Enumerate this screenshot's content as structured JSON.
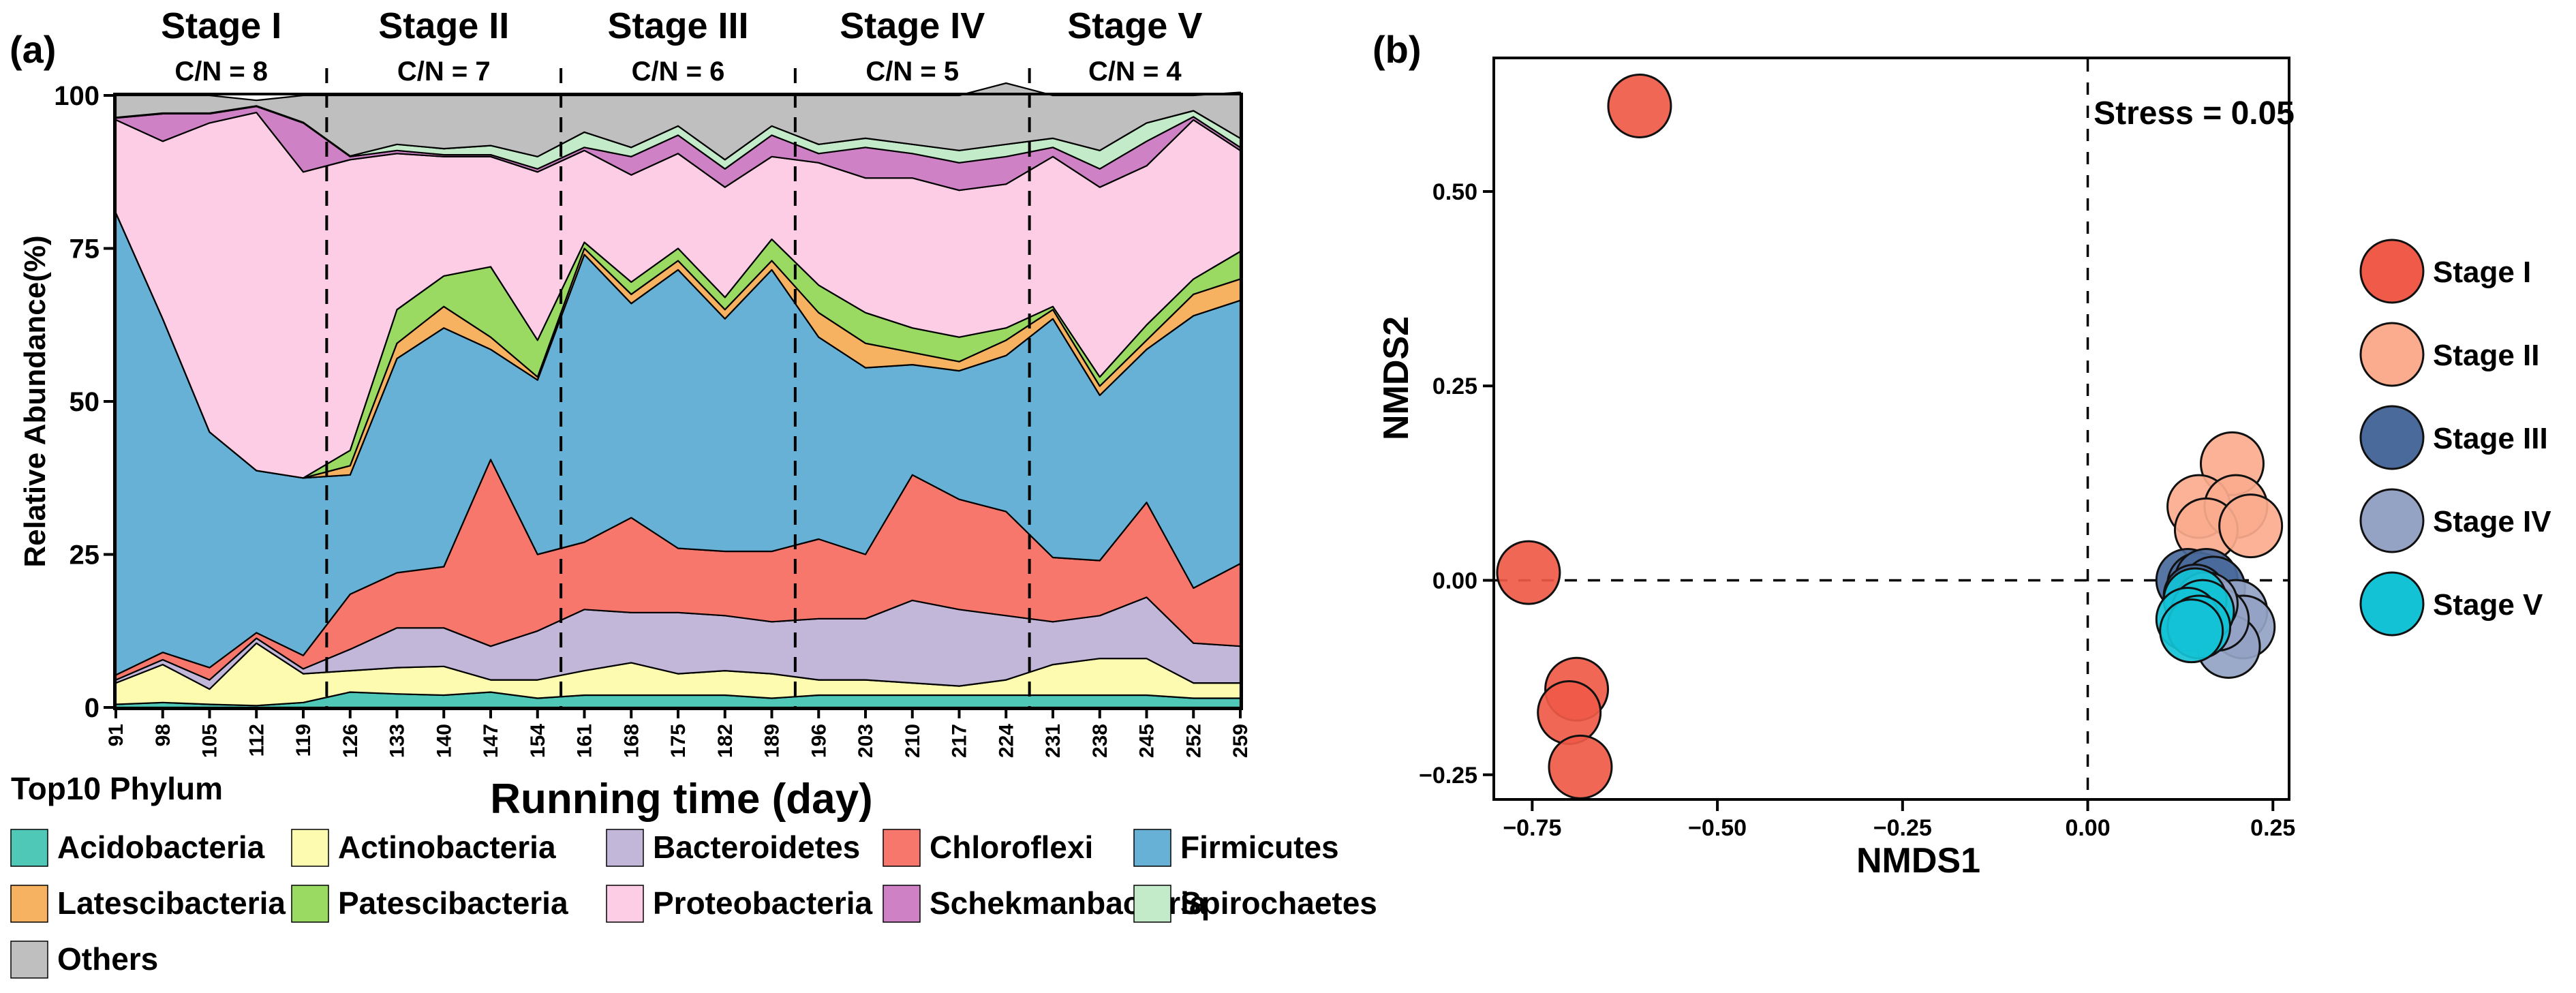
{
  "chart_data": [
    {
      "type": "area",
      "panel_label": "(a)",
      "stacked": true,
      "xlabel": "Running time (day)",
      "ylabel": "Relative Abundance(%)",
      "ylim": [
        0,
        100
      ],
      "yticks": [
        "0",
        "25",
        "50",
        "75",
        "100"
      ],
      "x": [
        "91",
        "98",
        "105",
        "112",
        "119",
        "126",
        "133",
        "140",
        "147",
        "154",
        "161",
        "168",
        "175",
        "182",
        "189",
        "196",
        "203",
        "210",
        "217",
        "224",
        "231",
        "238",
        "245",
        "252",
        "259"
      ],
      "stages": [
        {
          "name": "Stage I",
          "cn": "C/N = 8"
        },
        {
          "name": "Stage II",
          "cn": "C/N = 7"
        },
        {
          "name": "Stage III",
          "cn": "C/N = 6"
        },
        {
          "name": "Stage IV",
          "cn": "C/N = 5"
        },
        {
          "name": "Stage V",
          "cn": "C/N = 4"
        }
      ],
      "stage_dividers": [
        122.5,
        157.5,
        192.5,
        227.5
      ],
      "legend_title": "Top10 Phylum",
      "series": [
        {
          "name": "Acidobacteria",
          "color": "#4fc8b8",
          "values": [
            0.5,
            0.8,
            0.5,
            0.3,
            0.8,
            2.5,
            2.2,
            2.0,
            2.5,
            1.5,
            2.0,
            2.0,
            2.0,
            2.0,
            1.5,
            2.0,
            2.0,
            2.0,
            2.0,
            2.0,
            2.0,
            2.0,
            2.0,
            1.5,
            1.5
          ]
        },
        {
          "name": "Actinobacteria",
          "color": "#fdfbb0",
          "values": [
            3.5,
            6.2,
            2.5,
            10.2,
            4.7,
            3.5,
            4.3,
            4.7,
            2.0,
            3.0,
            4.0,
            5.3,
            3.5,
            4.0,
            4.0,
            2.5,
            2.5,
            2.0,
            1.5,
            2.5,
            5.0,
            6.0,
            6.0,
            2.5,
            2.5
          ]
        },
        {
          "name": "Bacteroidetes",
          "color": "#c2b7d8",
          "values": [
            0.5,
            0.8,
            1.5,
            0.8,
            0.8,
            3.5,
            6.5,
            6.3,
            5.5,
            8.0,
            10.0,
            8.2,
            10.0,
            9.0,
            8.5,
            10.0,
            10.0,
            13.5,
            12.5,
            10.5,
            7.0,
            7.0,
            10.0,
            6.5,
            6.0
          ]
        },
        {
          "name": "Chloroflexi",
          "color": "#f7776c",
          "values": [
            0.8,
            1.2,
            2.0,
            0.9,
            2.2,
            9.0,
            9.0,
            10.0,
            30.5,
            12.5,
            11.0,
            15.5,
            10.5,
            10.5,
            11.5,
            13.0,
            10.5,
            20.5,
            18.0,
            17.0,
            10.5,
            9.0,
            15.5,
            9.0,
            13.5
          ]
        },
        {
          "name": "Firmicutes",
          "color": "#66b1d5",
          "values": [
            75.5,
            54.5,
            38.5,
            26.5,
            29.0,
            19.5,
            35.0,
            39.0,
            18.0,
            28.5,
            47.0,
            35.0,
            45.5,
            38.0,
            46.0,
            33.0,
            30.5,
            18.0,
            21.0,
            25.5,
            39.0,
            27.0,
            25.0,
            44.5,
            43.0
          ]
        },
        {
          "name": "Latescibacteria",
          "color": "#f6b261",
          "values": [
            0,
            0,
            0,
            0,
            0,
            1.5,
            2.5,
            3.5,
            2.0,
            0.5,
            1.0,
            1.5,
            1.5,
            1.5,
            1.5,
            4.0,
            4.0,
            2.0,
            1.5,
            2.5,
            1.5,
            1.5,
            1.5,
            3.5,
            3.5
          ]
        },
        {
          "name": "Patescibacteria",
          "color": "#9ada63",
          "values": [
            0,
            0,
            0,
            0,
            0,
            2.5,
            5.5,
            5.0,
            11.5,
            6.0,
            1.0,
            2.0,
            2.0,
            2.0,
            3.5,
            4.5,
            5.0,
            4.0,
            4.0,
            2.0,
            0.5,
            1.5,
            2.5,
            2.5,
            4.5
          ]
        },
        {
          "name": "Proteobacteria",
          "color": "#fdcce5",
          "values": [
            15.2,
            29.0,
            50.5,
            58.5,
            50.0,
            47.5,
            25.5,
            19.5,
            18.0,
            27.5,
            15.0,
            17.5,
            15.5,
            18.0,
            13.5,
            20.0,
            22.0,
            24.5,
            24.0,
            23.5,
            24.5,
            31.0,
            26.0,
            26.0,
            16.5
          ]
        },
        {
          "name": "Schekmanbacteria",
          "color": "#cf81c5",
          "values": [
            0.3,
            4.5,
            1.5,
            1.0,
            8.0,
            0.5,
            0.5,
            0.3,
            0.3,
            0.5,
            0.5,
            3.0,
            3.0,
            3.0,
            3.5,
            1.5,
            5.0,
            4.0,
            4.5,
            4.5,
            1.5,
            3.0,
            4.0,
            0.5,
            0.5
          ]
        },
        {
          "name": "Spirochaetes",
          "color": "#c4ebc9",
          "values": [
            0.1,
            0.1,
            0.1,
            0.1,
            0.1,
            0.1,
            1.0,
            1.0,
            1.5,
            2.0,
            2.5,
            1.5,
            1.5,
            1.5,
            1.5,
            1.5,
            1.5,
            1.5,
            2.0,
            2.0,
            1.5,
            3.0,
            3.0,
            1.0,
            1.5
          ]
        },
        {
          "name": "Others",
          "color": "#bfbfbf",
          "values": [
            3.6,
            2.9,
            2.9,
            0.9,
            4.4,
            9.9,
            8.0,
            8.7,
            8.2,
            10.0,
            6.0,
            8.5,
            5.0,
            10.5,
            5.0,
            8.0,
            7.0,
            8.0,
            9.0,
            10.0,
            7.0,
            9.0,
            4.5,
            2.5,
            7.5
          ]
        }
      ]
    },
    {
      "type": "scatter",
      "panel_label": "(b)",
      "xlabel": "NMDS1",
      "ylabel": "NMDS2",
      "xlim": [
        -0.8,
        0.27
      ],
      "ylim": [
        -0.28,
        0.67
      ],
      "xticks": [
        {
          "v": -0.75,
          "label": "−0.75"
        },
        {
          "v": -0.5,
          "label": "−0.50"
        },
        {
          "v": -0.25,
          "label": "−0.25"
        },
        {
          "v": 0.0,
          "label": "0.00"
        },
        {
          "v": 0.25,
          "label": "0.25"
        }
      ],
      "yticks": [
        {
          "v": -0.25,
          "label": "−0.25"
        },
        {
          "v": 0.0,
          "label": "0.00"
        },
        {
          "v": 0.25,
          "label": "0.25"
        },
        {
          "v": 0.5,
          "label": "0.50"
        }
      ],
      "stress_label": "Stress =  0.05",
      "series": [
        {
          "name": "Stage I",
          "color": "#f05a48",
          "points": [
            [
              -0.605,
              0.61
            ],
            [
              -0.755,
              0.01
            ],
            [
              -0.69,
              -0.14
            ],
            [
              -0.7,
              -0.17
            ],
            [
              -0.685,
              -0.24
            ]
          ]
        },
        {
          "name": "Stage II",
          "color": "#fbab8e",
          "points": [
            [
              0.195,
              0.15
            ],
            [
              0.15,
              0.095
            ],
            [
              0.2,
              0.095
            ],
            [
              0.16,
              0.065
            ],
            [
              0.22,
              0.07
            ]
          ]
        },
        {
          "name": "Stage III",
          "color": "#4a6a9c",
          "points": [
            [
              0.135,
              0.0
            ],
            [
              0.15,
              -0.005
            ],
            [
              0.16,
              0.0
            ],
            [
              0.17,
              -0.01
            ],
            [
              0.145,
              -0.02
            ]
          ]
        },
        {
          "name": "Stage IV",
          "color": "#94a3c4",
          "points": [
            [
              0.2,
              -0.04
            ],
            [
              0.21,
              -0.06
            ],
            [
              0.19,
              -0.085
            ],
            [
              0.175,
              -0.05
            ],
            [
              0.16,
              -0.03
            ]
          ]
        },
        {
          "name": "Stage V",
          "color": "#14c2d6",
          "points": [
            [
              0.145,
              -0.025
            ],
            [
              0.155,
              -0.04
            ],
            [
              0.135,
              -0.05
            ],
            [
              0.15,
              -0.06
            ],
            [
              0.14,
              -0.065
            ]
          ]
        }
      ]
    }
  ]
}
